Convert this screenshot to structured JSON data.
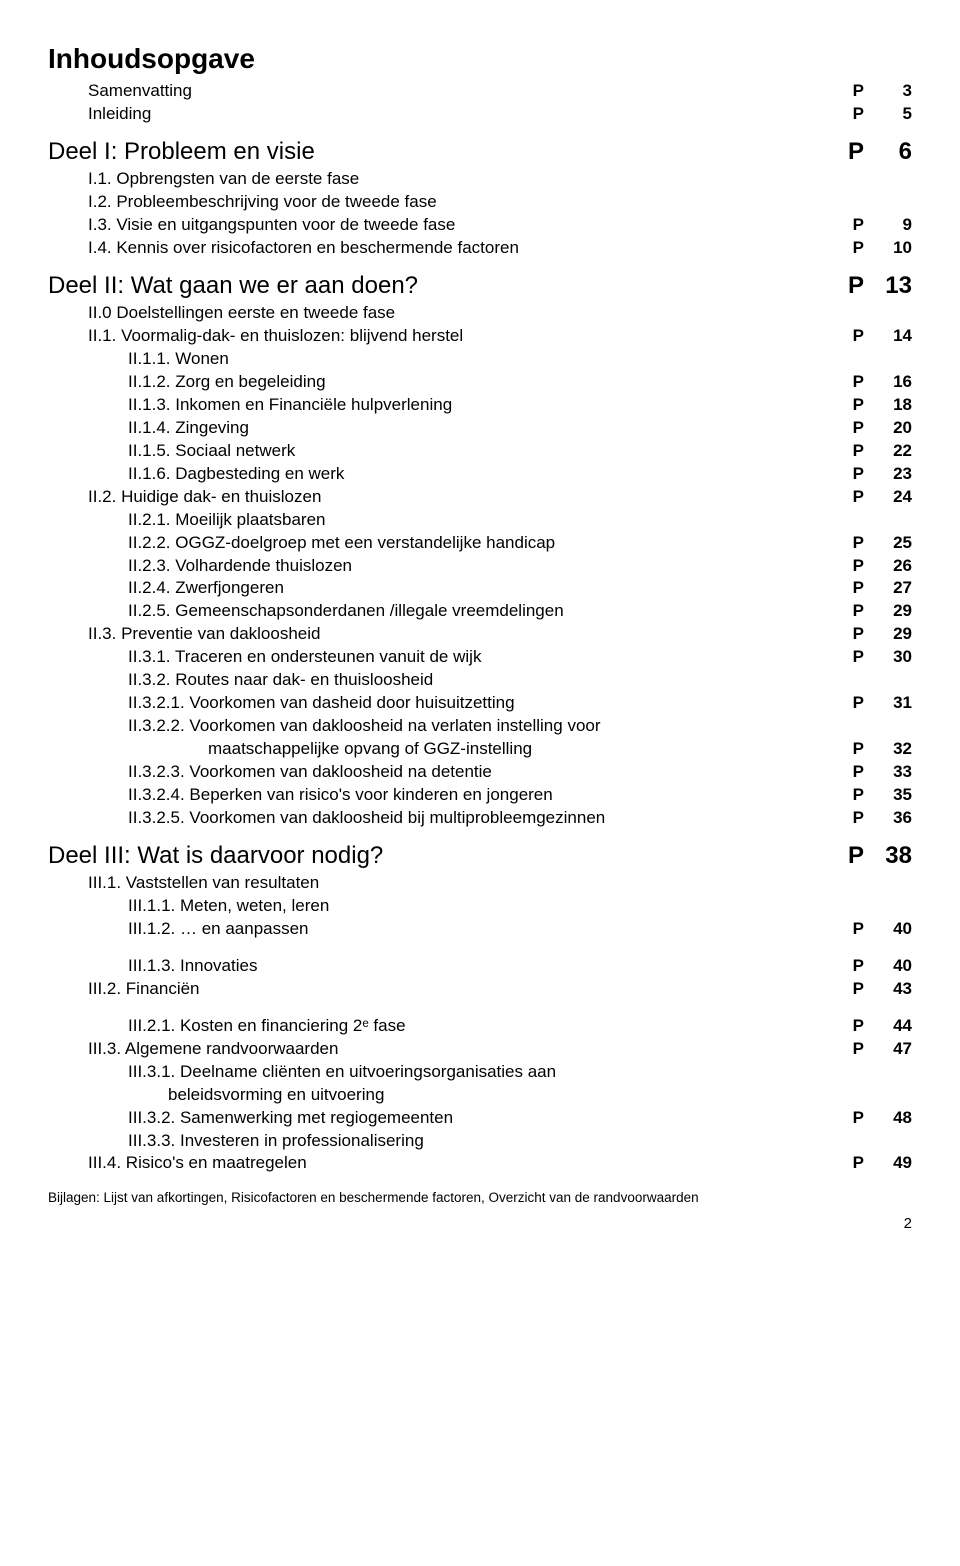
{
  "title": "Inhoudsopgave",
  "rows": [
    {
      "label": "Samenvatting",
      "p": "P",
      "n": "3",
      "cls": "indent1"
    },
    {
      "label": "Inleiding",
      "p": "P",
      "n": "5",
      "cls": "indent1"
    },
    {
      "label": "Deel I: Probleem en visie",
      "p": "P",
      "n": "6",
      "cls": "h1"
    },
    {
      "label": "I.1. Opbrengsten van de eerste fase",
      "cls": "indent1"
    },
    {
      "label": "I.2. Probleembeschrijving voor de tweede fase",
      "cls": "indent1"
    },
    {
      "label": "I.3. Visie en uitgangspunten voor de tweede fase",
      "p": "P",
      "n": "9",
      "cls": "indent1"
    },
    {
      "label": "I.4. Kennis over risicofactoren en beschermende factoren",
      "p": "P",
      "n": "10",
      "cls": "indent1"
    },
    {
      "label": "Deel II: Wat gaan we er aan doen?",
      "p": "P",
      "n": "13",
      "cls": "h1"
    },
    {
      "label": "II.0 Doelstellingen eerste en tweede fase",
      "cls": "indent1"
    },
    {
      "label": "II.1. Voormalig-dak- en thuislozen: blijvend herstel",
      "p": "P",
      "n": "14",
      "cls": "indent1"
    },
    {
      "label": "II.1.1. Wonen",
      "cls": "indent2"
    },
    {
      "label": "II.1.2. Zorg en begeleiding",
      "p": "P",
      "n": "16",
      "cls": "indent2"
    },
    {
      "label": "II.1.3. Inkomen en Financiële hulpverlening",
      "p": "P",
      "n": "18",
      "cls": "indent2"
    },
    {
      "label": "II.1.4. Zingeving",
      "p": "P",
      "n": "20",
      "cls": "indent2"
    },
    {
      "label": "II.1.5. Sociaal netwerk",
      "p": "P",
      "n": "22",
      "cls": "indent2"
    },
    {
      "label": "II.1.6. Dagbesteding en werk",
      "p": "P",
      "n": "23",
      "cls": "indent2"
    },
    {
      "label": "II.2. Huidige dak- en thuislozen",
      "p": "P",
      "n": "24",
      "cls": "indent1"
    },
    {
      "label": "II.2.1. Moeilijk plaatsbaren",
      "cls": "indent2"
    },
    {
      "label": "II.2.2. OGGZ-doelgroep met een verstandelijke handicap",
      "p": "P",
      "n": "25",
      "cls": "indent2"
    },
    {
      "label": "II.2.3. Volhardende thuislozen",
      "p": "P",
      "n": "26",
      "cls": "indent2"
    },
    {
      "label": "II.2.4. Zwerfjongeren",
      "p": "P",
      "n": "27",
      "cls": "indent2"
    },
    {
      "label": "II.2.5. Gemeenschapsonderdanen /illegale vreemdelingen",
      "p": "P",
      "n": "29",
      "cls": "indent2"
    },
    {
      "label": "II.3. Preventie van dakloosheid",
      "p": "P",
      "n": "29",
      "cls": "indent1"
    },
    {
      "label": "II.3.1. Traceren en ondersteunen vanuit de wijk",
      "p": "P",
      "n": "30",
      "cls": "indent2"
    },
    {
      "label": "II.3.2. Routes naar dak- en thuisloosheid",
      "cls": "indent2"
    },
    {
      "label": "II.3.2.1. Voorkomen van dasheid door huisuitzetting",
      "p": "P",
      "n": "31",
      "cls": "indent2"
    },
    {
      "label": "II.3.2.2. Voorkomen van dakloosheid na verlaten instelling voor",
      "cls": "indent2"
    },
    {
      "label": "maatschappelijke opvang of GGZ-instelling",
      "p": "P",
      "n": "32",
      "cls": "indent4"
    },
    {
      "label": "II.3.2.3. Voorkomen van dakloosheid na detentie",
      "p": "P",
      "n": "33",
      "cls": "indent2"
    },
    {
      "label": "II.3.2.4. Beperken van risico's voor kinderen en jongeren",
      "p": "P",
      "n": "35",
      "cls": "indent2"
    },
    {
      "label": "II.3.2.5. Voorkomen van dakloosheid bij multiprobleemgezinnen",
      "p": "P",
      "n": "36",
      "cls": "indent2"
    },
    {
      "label": "Deel III: Wat is daarvoor nodig?",
      "p": "P",
      "n": "38",
      "cls": "h1"
    },
    {
      "label": "III.1. Vaststellen van resultaten",
      "cls": "indent1"
    },
    {
      "label": "III.1.1. Meten, weten, leren",
      "cls": "indent2"
    },
    {
      "label": "III.1.2. … en aanpassen",
      "p": "P",
      "n": "40",
      "cls": "indent2"
    },
    {
      "spacer": true
    },
    {
      "label": "III.1.3. Innovaties",
      "p": "P",
      "n": "40",
      "cls": "indent2"
    },
    {
      "label": "III.2. Financiën",
      "p": "P",
      "n": "43",
      "cls": "indent1"
    },
    {
      "spacer": true
    },
    {
      "label": "III.2.1. Kosten en financiering 2ᵉ fase",
      "p": "P",
      "n": "44",
      "cls": "indent2"
    },
    {
      "label": "III.3. Algemene randvoorwaarden",
      "p": "P",
      "n": "47",
      "cls": "indent1"
    },
    {
      "label": "III.3.1. Deelname cliënten en uitvoeringsorganisaties aan",
      "cls": "indent2"
    },
    {
      "label": "beleidsvorming en uitvoering",
      "cls": "indent3"
    },
    {
      "label": "III.3.2. Samenwerking met regiogemeenten",
      "p": "P",
      "n": "48",
      "cls": "indent2"
    },
    {
      "label": "III.3.3. Investeren in professionalisering",
      "cls": "indent2"
    },
    {
      "label": "III.4. Risico's en maatregelen",
      "p": "P",
      "n": "49",
      "cls": "indent1"
    }
  ],
  "footnote": "Bijlagen: Lijst van afkortingen, Risicofactoren en beschermende factoren, Overzicht van de randvoorwaarden",
  "pagenum": "2"
}
